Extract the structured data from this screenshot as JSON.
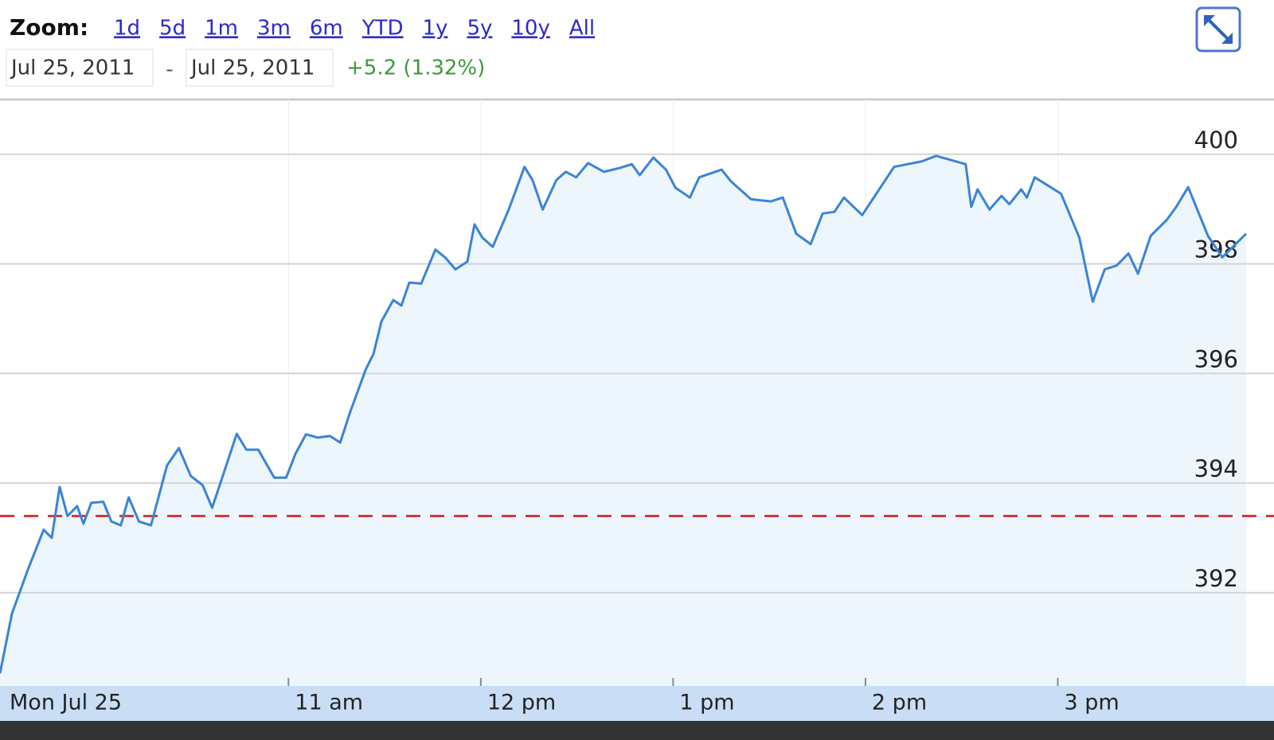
{
  "controls": {
    "zoom_label": "Zoom:",
    "zoom_options": [
      "1d",
      "5d",
      "1m",
      "3m",
      "6m",
      "YTD",
      "1y",
      "5y",
      "10y",
      "All"
    ],
    "start_date": "Jul 25, 2011",
    "separator": "-",
    "end_date": "Jul 25, 2011",
    "change": "+5.2 (1.32%)"
  },
  "chart_data": {
    "type": "line",
    "x": [
      9.5,
      9.562,
      9.645,
      9.727,
      9.769,
      9.81,
      9.851,
      9.901,
      9.934,
      9.975,
      10.037,
      10.079,
      10.128,
      10.169,
      10.223,
      10.285,
      10.368,
      10.43,
      10.492,
      10.554,
      10.603,
      10.649,
      10.731,
      10.781,
      10.843,
      10.926,
      10.988,
      11.037,
      11.091,
      11.153,
      11.215,
      11.269,
      11.318,
      11.401,
      11.442,
      11.483,
      11.545,
      11.587,
      11.628,
      11.69,
      11.764,
      11.814,
      11.868,
      11.93,
      11.967,
      12.008,
      12.062,
      12.145,
      12.227,
      12.269,
      12.322,
      12.393,
      12.442,
      12.496,
      12.558,
      12.64,
      12.723,
      12.785,
      12.826,
      12.897,
      12.963,
      13.012,
      13.087,
      13.136,
      13.252,
      13.302,
      13.405,
      13.508,
      13.57,
      13.64,
      13.715,
      13.777,
      13.839,
      13.888,
      13.983,
      14.149,
      14.293,
      14.368,
      14.521,
      14.55,
      14.583,
      14.645,
      14.707,
      14.748,
      14.81,
      14.839,
      14.88,
      15.017,
      15.112,
      15.182,
      15.244,
      15.306,
      15.368,
      15.417,
      15.483,
      15.566,
      15.616,
      15.678,
      15.781,
      15.855,
      15.979
    ],
    "series": [
      {
        "color": "#3a84d6",
        "fill": "#eef6fd",
        "values": [
          390.53,
          391.62,
          392.42,
          393.15,
          393.0,
          393.93,
          393.4,
          393.58,
          393.26,
          393.64,
          393.66,
          393.3,
          393.23,
          393.74,
          393.3,
          393.23,
          394.32,
          394.64,
          394.13,
          393.96,
          393.55,
          394.03,
          394.9,
          394.61,
          394.61,
          394.1,
          394.1,
          394.54,
          394.89,
          394.83,
          394.86,
          394.74,
          395.27,
          396.07,
          396.36,
          396.95,
          397.34,
          397.24,
          397.66,
          397.64,
          398.26,
          398.12,
          397.9,
          398.04,
          398.72,
          398.48,
          398.31,
          398.99,
          399.77,
          399.53,
          398.99,
          399.53,
          399.68,
          399.58,
          399.84,
          399.68,
          399.75,
          399.82,
          399.62,
          399.94,
          399.72,
          399.39,
          399.21,
          399.58,
          399.72,
          399.5,
          399.18,
          399.14,
          399.21,
          398.55,
          398.36,
          398.92,
          398.95,
          399.21,
          398.89,
          399.77,
          399.87,
          399.97,
          399.82,
          399.04,
          399.36,
          398.99,
          399.24,
          399.09,
          399.36,
          399.21,
          399.58,
          399.28,
          398.48,
          397.31,
          397.9,
          397.97,
          398.19,
          397.82,
          398.51,
          398.8,
          399.04,
          399.4,
          398.51,
          398.12,
          398.55
        ]
      }
    ],
    "reference_line": {
      "value": 393.4,
      "color": "#d9363e"
    },
    "xlim": [
      9.5,
      16
    ],
    "xticks": [
      {
        "value": 9.5,
        "label": "Mon Jul 25"
      },
      {
        "value": 11,
        "label": "11 am"
      },
      {
        "value": 12,
        "label": "12 pm"
      },
      {
        "value": 13,
        "label": "1 pm"
      },
      {
        "value": 14,
        "label": "2 pm"
      },
      {
        "value": 15,
        "label": "3 pm"
      }
    ],
    "ylim": [
      390.3,
      401
    ],
    "yticks": [
      392,
      394,
      396,
      398,
      400
    ],
    "grid": true
  }
}
